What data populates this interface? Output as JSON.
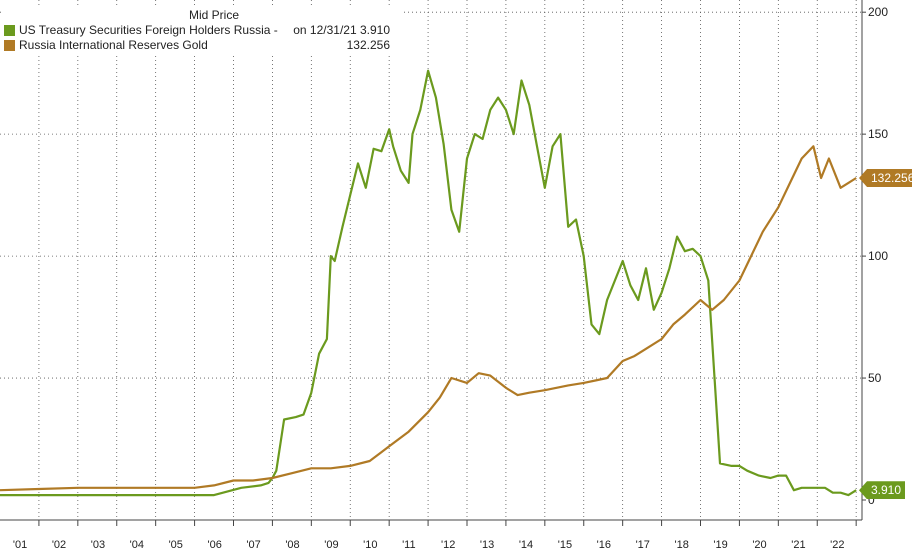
{
  "chart_data": {
    "type": "line",
    "header": "Mid Price",
    "x_start_year": 2000,
    "x_end_year": 2022,
    "ylim": [
      0,
      205
    ],
    "y_ticks": [
      0,
      50,
      100,
      150,
      200
    ],
    "y_tick_labels": [
      "0",
      "50",
      "100",
      "150",
      "200"
    ],
    "x_tick_labels": [
      "'01",
      "'02",
      "'03",
      "'04",
      "'05",
      "'06",
      "'07",
      "'08",
      "'09",
      "'10",
      "'11",
      "'12",
      "'13",
      "'14",
      "'15",
      "'16",
      "'17",
      "'18",
      "'19",
      "'20",
      "'21",
      "'22"
    ],
    "grid": true,
    "legend_position": "top-left",
    "series": [
      {
        "name": "US Treasury Securities Foreign Holders Russia -",
        "legend_value": "on 12/31/21 3.910",
        "last_label": "3.910",
        "color": "#6b9a1e",
        "x": [
          2000.0,
          2005.0,
          2005.5,
          2006.2,
          2006.7,
          2006.9,
          2007.0,
          2007.1,
          2007.3,
          2007.6,
          2007.8,
          2008.0,
          2008.2,
          2008.4,
          2008.5,
          2008.6,
          2008.8,
          2009.0,
          2009.2,
          2009.4,
          2009.6,
          2009.8,
          2010.0,
          2010.1,
          2010.3,
          2010.5,
          2010.6,
          2010.8,
          2011.0,
          2011.2,
          2011.4,
          2011.6,
          2011.8,
          2012.0,
          2012.2,
          2012.4,
          2012.6,
          2012.8,
          2013.0,
          2013.2,
          2013.4,
          2013.6,
          2013.8,
          2014.0,
          2014.2,
          2014.4,
          2014.6,
          2014.8,
          2015.0,
          2015.2,
          2015.4,
          2015.6,
          2015.8,
          2016.0,
          2016.2,
          2016.4,
          2016.6,
          2016.8,
          2017.0,
          2017.2,
          2017.4,
          2017.6,
          2017.8,
          2018.0,
          2018.1,
          2018.2,
          2018.5,
          2018.8,
          2019.0,
          2019.2,
          2019.5,
          2019.8,
          2020.0,
          2020.2,
          2020.4,
          2020.6,
          2020.8,
          2021.0,
          2021.2,
          2021.4,
          2021.6,
          2021.8,
          2022.0
        ],
        "values": [
          2,
          2,
          2,
          5,
          6,
          7,
          9,
          12,
          33,
          34,
          35,
          44,
          60,
          66,
          100,
          98,
          112,
          125,
          138,
          128,
          144,
          143,
          152,
          145,
          135,
          130,
          150,
          160,
          176,
          165,
          146,
          119,
          110,
          140,
          150,
          148,
          160,
          165,
          160,
          150,
          172,
          162,
          145,
          128,
          145,
          150,
          112,
          115,
          100,
          72,
          68,
          82,
          90,
          98,
          88,
          82,
          95,
          78,
          85,
          95,
          108,
          102,
          103,
          100,
          95,
          90,
          15,
          14,
          14,
          12,
          10,
          9,
          10,
          10,
          4,
          5,
          5,
          5,
          5,
          3,
          3,
          2,
          4
        ]
      },
      {
        "name": "Russia International Reserves Gold",
        "legend_value": "132.256",
        "last_label": "132.256",
        "color": "#b07a25",
        "x": [
          2000.0,
          2001.0,
          2002.0,
          2003.0,
          2004.0,
          2005.0,
          2005.5,
          2006.0,
          2006.5,
          2007.0,
          2007.5,
          2008.0,
          2008.5,
          2009.0,
          2009.5,
          2010.0,
          2010.5,
          2011.0,
          2011.3,
          2011.6,
          2012.0,
          2012.3,
          2012.6,
          2013.0,
          2013.3,
          2013.6,
          2014.0,
          2014.3,
          2014.6,
          2015.0,
          2015.3,
          2015.6,
          2016.0,
          2016.3,
          2016.6,
          2017.0,
          2017.3,
          2017.6,
          2018.0,
          2018.3,
          2018.6,
          2019.0,
          2019.3,
          2019.6,
          2020.0,
          2020.3,
          2020.6,
          2020.9,
          2021.1,
          2021.3,
          2021.6,
          2021.8,
          2022.0
        ],
        "values": [
          4,
          4.5,
          5,
          5,
          5,
          5,
          6,
          8,
          8,
          9,
          11,
          13,
          13,
          14,
          16,
          22,
          28,
          36,
          42,
          50,
          48,
          52,
          51,
          46,
          43,
          44,
          45,
          46,
          47,
          48,
          49,
          50,
          57,
          59,
          62,
          66,
          72,
          76,
          82,
          78,
          82,
          90,
          100,
          110,
          120,
          130,
          140,
          145,
          132,
          140,
          128,
          130,
          132
        ]
      }
    ]
  }
}
